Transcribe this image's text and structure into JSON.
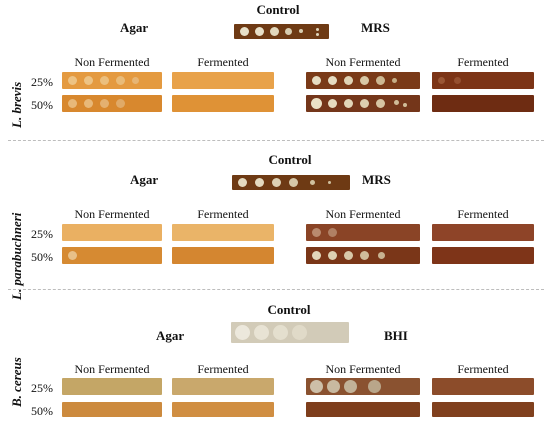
{
  "panels": [
    {
      "species": "L. brevis",
      "control": "Control",
      "media_left": "Agar",
      "media_right": "MRS",
      "columns": [
        "Non Fermented",
        "Fermented",
        "Non Fermented",
        "Fermented"
      ],
      "rows": [
        "25%",
        "50%"
      ]
    },
    {
      "species": "L. parabuchneri",
      "control": "Control",
      "media_left": "Agar",
      "media_right": "MRS",
      "columns": [
        "Non Fermented",
        "Fermented",
        "Non Fermented",
        "Fermented"
      ],
      "rows": [
        "25%",
        "50%"
      ]
    },
    {
      "species": "B. cereus",
      "control": "Control",
      "media_left": "Agar",
      "media_right": "BHI",
      "columns": [
        "Non Fermented",
        "Fermented",
        "Non Fermented",
        "Fermented"
      ],
      "rows": [
        "25%",
        "50%"
      ]
    }
  ],
  "colors": {
    "agar_orange": "#e59a3e",
    "agar_light": "#edb56a",
    "mrs_brown": "#7a3a16",
    "mrs_dark": "#6a2e10",
    "colony_cream": "#e9e1c8",
    "bhi_grey": "#d6cfbe"
  }
}
